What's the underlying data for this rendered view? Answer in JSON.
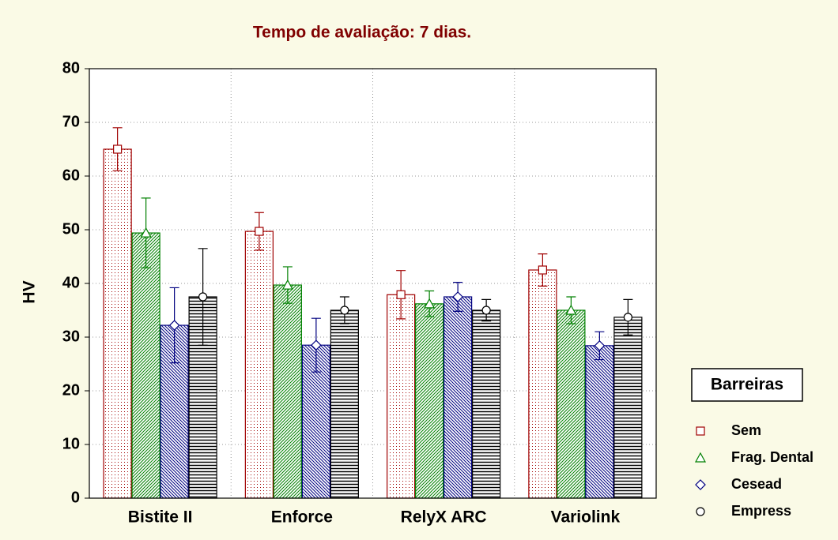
{
  "chart_data": {
    "type": "bar",
    "title": "Tempo de avaliação: 7 dias.",
    "y_label": "HV",
    "legend_title": "Barreiras",
    "categories": [
      "Bistite II",
      "Enforce",
      "RelyX ARC",
      "Variolink"
    ],
    "series": [
      {
        "name": "Sem",
        "color": "#a00000",
        "pattern": "dots",
        "marker": "square",
        "values": [
          65,
          49.7,
          37.9,
          42.5
        ],
        "errors": [
          4,
          3.5,
          4.5,
          3
        ]
      },
      {
        "name": "Frag. Dental",
        "color": "#008000",
        "pattern": "diagonal",
        "marker": "triangle",
        "values": [
          49.4,
          39.7,
          36.2,
          35
        ],
        "errors": [
          6.5,
          3.4,
          2.4,
          2.5
        ]
      },
      {
        "name": "Cesead",
        "color": "#000080",
        "pattern": "backdiagonal",
        "marker": "diamond",
        "values": [
          32.2,
          28.5,
          37.5,
          28.4
        ],
        "errors": [
          7,
          5,
          2.7,
          2.6
        ]
      },
      {
        "name": "Empress",
        "color": "#000000",
        "pattern": "horizontal",
        "marker": "circle",
        "values": [
          37.5,
          35,
          35,
          33.7
        ],
        "errors": [
          9,
          2.5,
          2,
          3.3
        ]
      }
    ],
    "ylim": [
      0,
      80
    ],
    "yticks": [
      0,
      10,
      20,
      30,
      40,
      50,
      60,
      70,
      80
    ],
    "grid": true,
    "legend": "right"
  }
}
